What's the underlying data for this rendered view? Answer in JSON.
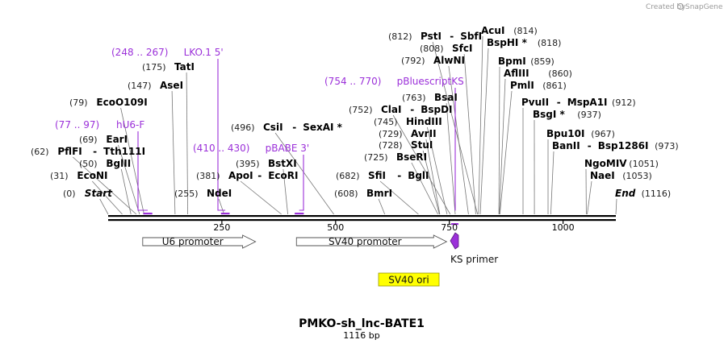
{
  "credit": {
    "prefix": "Created by",
    "brand": "SnapGene"
  },
  "title": "PMKO-sh_lnc-BATE1",
  "subtitle": "1116 bp",
  "sequence_length": 1116,
  "ticks": [
    250,
    500,
    750,
    1000
  ],
  "colors": {
    "primer": "#9b30d9",
    "backbone": "#000000",
    "feature_fill": "#ffffff",
    "ori_fill": "#ffff00"
  },
  "enzymes": [
    {
      "label": "Start",
      "pos": 0,
      "num": "(0)",
      "italic": true
    },
    {
      "label": "EcoNI",
      "pos": 31,
      "num": "(31)"
    },
    {
      "label": "BglII",
      "pos": 50,
      "num": "(50)"
    },
    {
      "label": "PflFI",
      "label2": "Tth111I",
      "pos": 62,
      "num": "(62)"
    },
    {
      "label": "EarI",
      "pos": 69,
      "num": "(69)"
    },
    {
      "label": "EcoO109I",
      "pos": 79,
      "num": "(79)"
    },
    {
      "label": "AseI",
      "pos": 147,
      "num": "(147)"
    },
    {
      "label": "TatI",
      "pos": 175,
      "num": "(175)"
    },
    {
      "label": "NdeI",
      "pos": 255,
      "num": "(255)"
    },
    {
      "label": "ApoI",
      "label2": "EcoRI",
      "pos": 381,
      "num": "(381)"
    },
    {
      "label": "BstXI",
      "pos": 395,
      "num": "(395)"
    },
    {
      "label": "CsiI",
      "label2": "SexAI *",
      "pos": 496,
      "num": "(496)"
    },
    {
      "label": "BmrI",
      "pos": 608,
      "num": "(608)"
    },
    {
      "label": "SfiI",
      "label2": "BglI",
      "pos": 682,
      "num": "(682)"
    },
    {
      "label": "BseRI",
      "pos": 725,
      "num": "(725)"
    },
    {
      "label": "StuI",
      "pos": 728,
      "num": "(728)"
    },
    {
      "label": "AvrII",
      "pos": 729,
      "num": "(729)"
    },
    {
      "label": "HindIII",
      "pos": 745,
      "num": "(745)"
    },
    {
      "label": "ClaI",
      "label2": "BspDI",
      "pos": 752,
      "num": "(752)"
    },
    {
      "label": "BsaI",
      "pos": 763,
      "num": "(763)"
    },
    {
      "label": "AlwNI",
      "pos": 792,
      "num": "(792)"
    },
    {
      "label": "SfcI",
      "pos": 808,
      "num": "(808)"
    },
    {
      "label": "PstI",
      "label2": "SbfI",
      "pos": 812,
      "num": "(812)"
    },
    {
      "label": "AcuI",
      "pos": 814,
      "num": "(814)"
    },
    {
      "label": "BspHI *",
      "pos": 818,
      "num": "(818)"
    },
    {
      "label": "BpmI",
      "pos": 859,
      "num": "(859)"
    },
    {
      "label": "AflIII",
      "pos": 860,
      "num": "(860)"
    },
    {
      "label": "PmlI",
      "pos": 861,
      "num": "(861)"
    },
    {
      "label": "PvuII",
      "label2": "MspA1I",
      "pos": 912,
      "num": "(912)"
    },
    {
      "label": "BsgI *",
      "pos": 937,
      "num": "(937)"
    },
    {
      "label": "Bpu10I",
      "pos": 967,
      "num": "(967)"
    },
    {
      "label": "BanII",
      "label2": "Bsp1286I",
      "pos": 973,
      "num": "(973)"
    },
    {
      "label": "NgoMIV",
      "pos": 1051,
      "num": "(1051)"
    },
    {
      "label": "NaeI",
      "pos": 1053,
      "num": "(1053)"
    },
    {
      "label": "End",
      "pos": 1116,
      "num": "(1116)",
      "italic": true
    }
  ],
  "primers": [
    {
      "range": "(248 .. 267)",
      "name": "LKO.1 5'",
      "start": 248,
      "end": 267
    },
    {
      "range": "(77 .. 97)",
      "name": "hU6-F",
      "start": 77,
      "end": 97
    },
    {
      "range": "(410 .. 430)",
      "name": "pBABE 3'",
      "start": 410,
      "end": 430
    },
    {
      "range": "(754 .. 770)",
      "name": "pBluescriptKS",
      "start": 754,
      "end": 770
    }
  ],
  "features": [
    {
      "name": "U6 promoter",
      "start": 76,
      "end": 324,
      "direction": "forward"
    },
    {
      "name": "SV40 promoter",
      "start": 414,
      "end": 744,
      "direction": "forward"
    }
  ],
  "primer_feature": {
    "name": "KS primer",
    "start": 754,
    "end": 770,
    "direction": "reverse"
  },
  "ori": {
    "name": "SV40 ori"
  }
}
